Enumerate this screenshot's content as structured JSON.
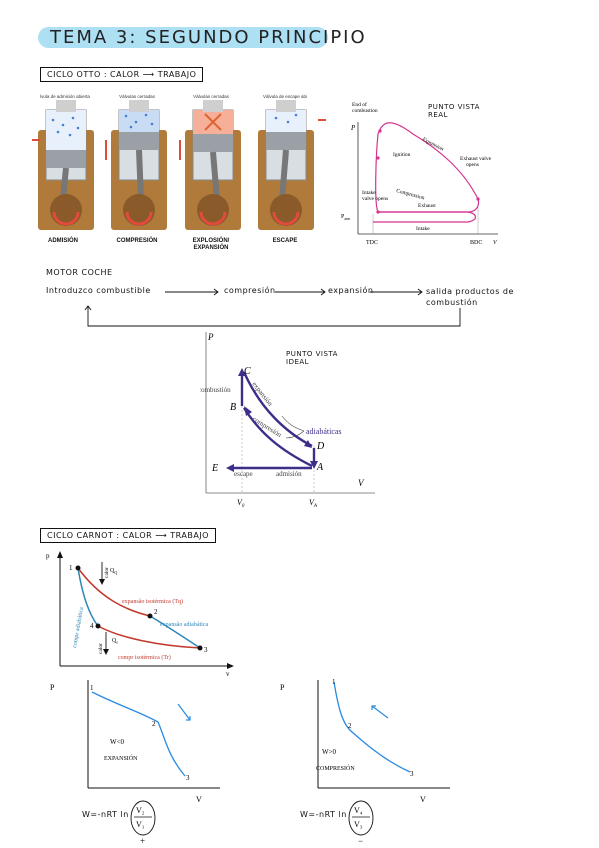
{
  "title": "TEMA 3: SEGUNDO PRINCIPIO",
  "otto_heading": "CICLO OTTO : CALOR ⟶ TRABAJO",
  "engine_strokes": [
    {
      "top": "lvula de admisión abierta",
      "label": "ADMISIÓN"
    },
    {
      "top": "Válvulas cerradas",
      "label": "COMPRESIÓN"
    },
    {
      "top": "Válvulas cerradas",
      "label": "EXPLOSIÓN/\nEXPANSIÓN"
    },
    {
      "top": "Válvula de escape abi",
      "label": "ESCAPE"
    }
  ],
  "real_diagram": {
    "note": "PUNTO VISTA\nREAL",
    "p": "P",
    "patm": "P",
    "patm_sub": "atm",
    "v": "V",
    "tdc": "TDC",
    "bdc": "BDC",
    "labels": {
      "end_combustion": "End of\ncombustion",
      "ignition": "Ignition",
      "expansion": "Expansion",
      "exhaust_valve": "Exhaust valve\nopens",
      "compression": "Compression",
      "intake_valve": "Intake\nvalve opens",
      "exhaust": "Exhaust",
      "intake": "Intake"
    }
  },
  "motor": {
    "title": "MOTOR COCHE",
    "step1": "Introduzco combustible",
    "step2": "compresión",
    "step3": "expansión",
    "step4": "salida productos de\ncombustión"
  },
  "ideal_diagram": {
    "note": "PUNTO VISTA\nIDEAL",
    "p": "P",
    "v": "V",
    "points": [
      "A",
      "B",
      "C",
      "D",
      "E"
    ],
    "combustion": "combustión",
    "expansion": "expansión",
    "compression": "compresión",
    "adiabatic": "adiabáticas",
    "escape": "escape",
    "admission": "admisión",
    "v0": "V",
    "v0_sub": "0",
    "va": "V",
    "va_sub": "A"
  },
  "carnot_heading": "CICLO CARNOT : CALOR ⟶ TRABAJO",
  "carnot_diagram": {
    "p": "p",
    "v": "v",
    "points": [
      "1",
      "2",
      "3",
      "4"
    ],
    "calor_top": "calor",
    "qq": "Q",
    "qq_sub": "Q",
    "exp_iso": "expansão isotérmica (Tq)",
    "exp_adi": "expansão adiabática",
    "comp_adi": "compr adiabática",
    "calor_bottom": "calor",
    "qf": "Q",
    "qf_sub": "f",
    "comp_iso": "compr isotérmica (Tr)"
  },
  "expansion_sketch": {
    "p": "P",
    "v": "V",
    "points": [
      "1",
      "2",
      "3"
    ],
    "work": "W<0",
    "label": "EXPANSIÓN",
    "formula": "W=-nRT ln",
    "num": "V₂",
    "den": "V₁",
    "sign": "+"
  },
  "compression_sketch": {
    "p": "P",
    "v": "V",
    "points": [
      "1",
      "2",
      "3"
    ],
    "work": "W>0",
    "label": "COMPRESIÓN",
    "formula": "W=-nRT ln",
    "num": "V₄",
    "den": "V₃",
    "sign": "−"
  },
  "colors": {
    "highlight": "#aee0f4",
    "pink": "#d6338f",
    "ideal": "#3b2f8a",
    "red": "#c0392b",
    "teal": "#2c86b8",
    "blue_sketch": "#2a8be0"
  }
}
